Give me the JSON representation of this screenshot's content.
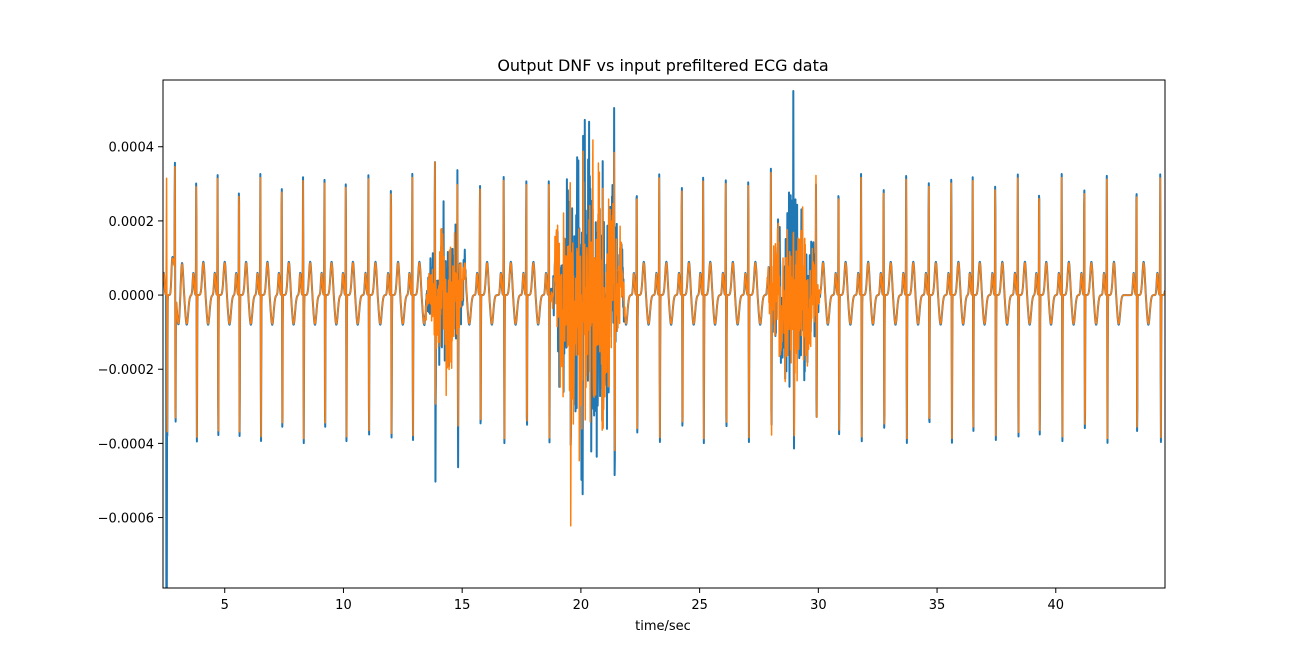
{
  "chart_data": {
    "type": "line",
    "title": "Output DNF vs input prefiltered ECG data",
    "xlabel": "time/sec",
    "ylabel": "",
    "xlim": [
      2.4,
      44.6
    ],
    "ylim": [
      -0.00079,
      0.00058
    ],
    "x_ticks": [
      5,
      10,
      15,
      20,
      25,
      30,
      35,
      40
    ],
    "x_tick_labels": [
      "5",
      "10",
      "15",
      "20",
      "25",
      "30",
      "35",
      "40"
    ],
    "y_ticks": [
      -0.0006,
      -0.0004,
      -0.0002,
      0.0,
      0.0002,
      0.0004
    ],
    "y_tick_labels": [
      "−0.0006",
      "−0.0004",
      "−0.0002",
      "0.0000",
      "0.0002",
      "0.0004"
    ],
    "grid": false,
    "legend": "none",
    "colors": [
      "#1f77b4",
      "#ff7f0e"
    ],
    "signal": {
      "beat_times": [
        2.55,
        2.9,
        3.8,
        4.7,
        5.6,
        6.5,
        7.4,
        8.3,
        9.2,
        10.1,
        11.05,
        12.0,
        12.9,
        13.85,
        14.8,
        15.75,
        16.75,
        17.7,
        18.65,
        19.55,
        20.5,
        21.4,
        22.35,
        23.3,
        24.25,
        25.15,
        26.1,
        27.05,
        28.0,
        28.95,
        29.9,
        30.85,
        31.8,
        32.75,
        33.7,
        34.65,
        35.6,
        36.5,
        37.45,
        38.4,
        39.3,
        40.25,
        41.2,
        42.15,
        43.4,
        44.4
      ],
      "r_peak_amplitude": 0.00033,
      "s_trough_amplitude": -0.0004,
      "t_wave_amplitude": 9e-05,
      "baseline_dip": -8e-05,
      "noise_bursts": [
        {
          "start": 13.4,
          "end": 15.2,
          "amplitude": 0.00025
        },
        {
          "start": 18.7,
          "end": 21.9,
          "amplitude": 0.00052
        },
        {
          "start": 27.8,
          "end": 30.1,
          "amplitude": 0.0003
        }
      ],
      "initial_spike_time": 2.55,
      "initial_spike_value": -0.00079
    },
    "series": [
      {
        "values_ref": "signal",
        "color": "#1f77b4"
      },
      {
        "values_ref": "signal",
        "color": "#ff7f0e"
      }
    ]
  }
}
